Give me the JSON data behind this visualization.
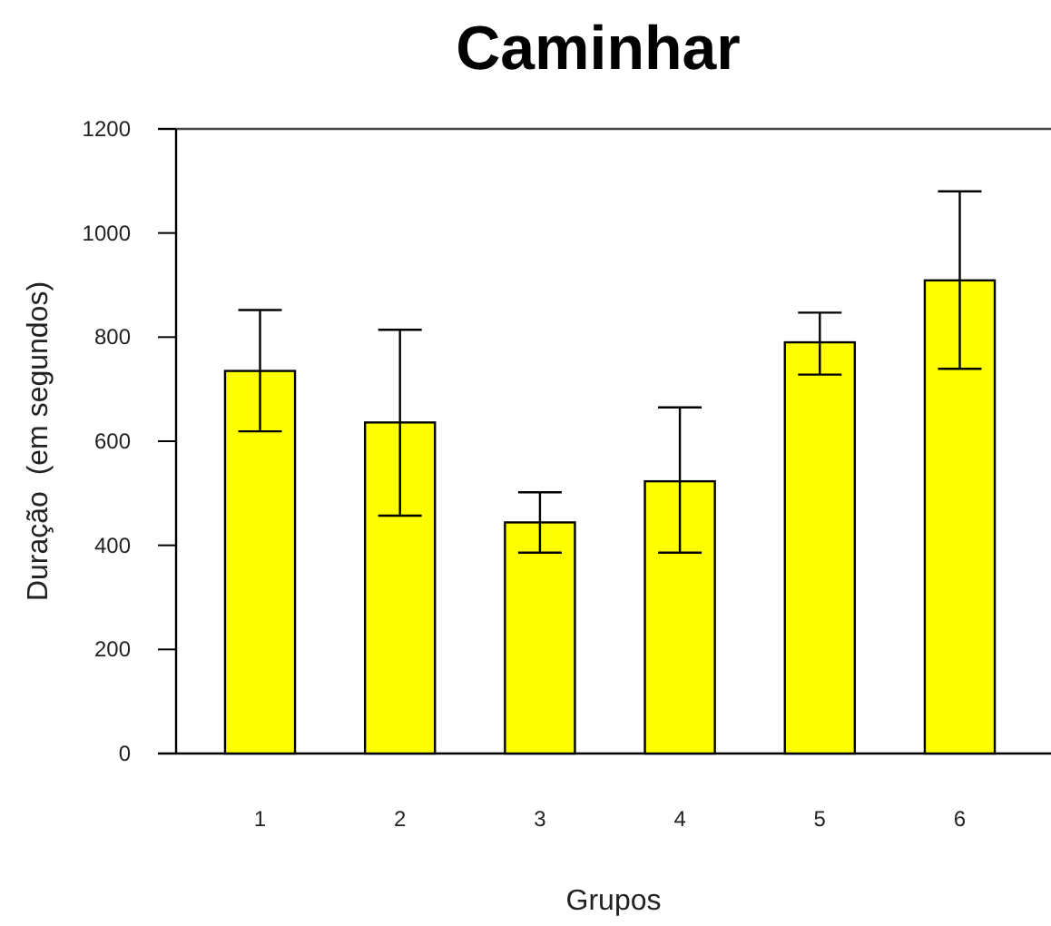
{
  "chart_data": {
    "type": "bar",
    "title": "Caminhar",
    "xlabel": "Grupos",
    "ylabel": "Duração  (em segundos)",
    "categories": [
      "1",
      "2",
      "3",
      "4",
      "5",
      "6"
    ],
    "values": [
      735,
      636,
      444,
      523,
      790,
      909
    ],
    "color": "#ffff00",
    "errors": [
      [
        619,
        852
      ],
      [
        457,
        814
      ],
      [
        386,
        502
      ],
      [
        386,
        665
      ],
      [
        728,
        847
      ],
      [
        739,
        1080
      ]
    ],
    "ylim": [
      0,
      1200
    ],
    "yticks": [
      0,
      200,
      400,
      600,
      800,
      1000,
      1200
    ],
    "grid": false
  }
}
